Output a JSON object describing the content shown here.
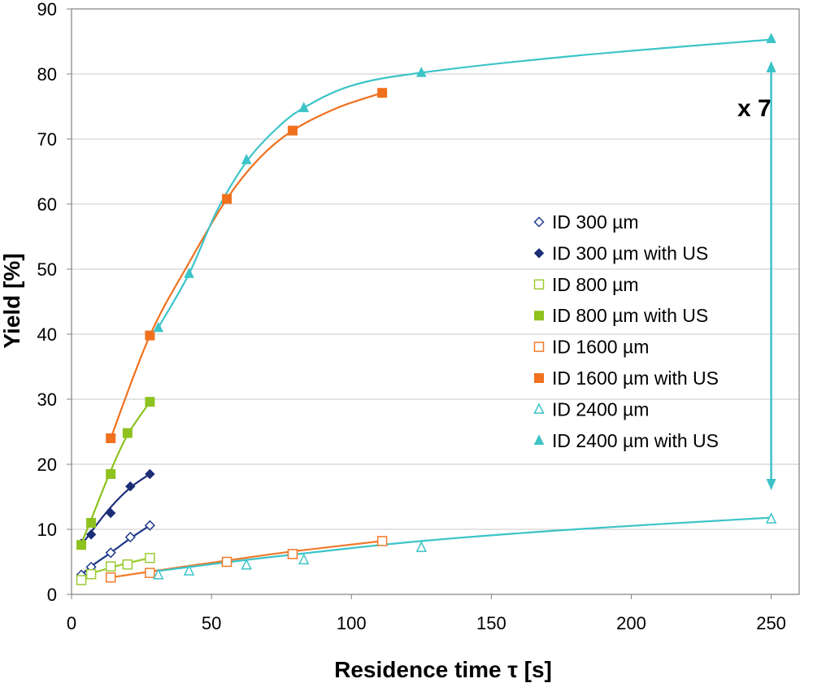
{
  "chart_data": {
    "type": "scatter",
    "title": "",
    "xlabel": "Residence time τ [s]",
    "ylabel": "Yield [%]",
    "xlim": [
      0,
      260
    ],
    "ylim": [
      0,
      90
    ],
    "xticks": [
      0,
      50,
      100,
      150,
      200,
      250
    ],
    "yticks": [
      0,
      10,
      20,
      30,
      40,
      50,
      60,
      70,
      80,
      90
    ],
    "grid": "horizontal",
    "legend_position": "right",
    "annotation": {
      "text": "x 7",
      "x": 250,
      "y_from": 16.5,
      "y_to": 81.5,
      "color": "#3CC4C8"
    },
    "series": [
      {
        "name": "ID 300 µm",
        "color": "#1F3A8A",
        "marker": "diamond",
        "filled": false,
        "points": [
          [
            3.5,
            3.0
          ],
          [
            7,
            4.2
          ],
          [
            14,
            6.4
          ],
          [
            21,
            8.8
          ],
          [
            28,
            10.6
          ]
        ],
        "fit": [
          [
            3.5,
            3.0
          ],
          [
            7,
            4.3
          ],
          [
            14,
            6.4
          ],
          [
            21,
            8.6
          ],
          [
            28,
            10.6
          ]
        ]
      },
      {
        "name": "ID 300 µm with US",
        "color": "#1C2E78",
        "marker": "diamond",
        "filled": true,
        "points": [
          [
            3.5,
            7.8
          ],
          [
            7,
            9.2
          ],
          [
            14,
            12.5
          ],
          [
            21,
            16.6
          ],
          [
            28,
            18.5
          ]
        ],
        "fit": [
          [
            3.5,
            7.5
          ],
          [
            7,
            9.6
          ],
          [
            14,
            13.4
          ],
          [
            21,
            16.4
          ],
          [
            28,
            18.5
          ]
        ]
      },
      {
        "name": "ID 800 µm",
        "color": "#9ACD32",
        "marker": "square",
        "filled": false,
        "points": [
          [
            3.5,
            2.2
          ],
          [
            7,
            3.1
          ],
          [
            14,
            4.3
          ],
          [
            20,
            4.6
          ],
          [
            28,
            5.6
          ]
        ],
        "fit": [
          [
            3.5,
            2.5
          ],
          [
            7,
            3.2
          ],
          [
            14,
            4.1
          ],
          [
            20,
            4.8
          ],
          [
            28,
            5.6
          ]
        ]
      },
      {
        "name": "ID 800 µm with US",
        "color": "#8DC21F",
        "marker": "square",
        "filled": true,
        "points": [
          [
            3.5,
            7.6
          ],
          [
            7,
            11.0
          ],
          [
            14,
            18.5
          ],
          [
            20,
            24.8
          ],
          [
            28,
            29.6
          ]
        ],
        "fit": [
          [
            3.5,
            7.8
          ],
          [
            7,
            11.5
          ],
          [
            14,
            19.0
          ],
          [
            20,
            24.5
          ],
          [
            28,
            29.6
          ]
        ]
      },
      {
        "name": "ID 1600 µm",
        "color": "#F07A2A",
        "marker": "square",
        "filled": false,
        "points": [
          [
            14,
            2.6
          ],
          [
            28,
            3.3
          ],
          [
            55.5,
            5.0
          ],
          [
            79,
            6.2
          ],
          [
            111,
            8.2
          ]
        ],
        "fit": [
          [
            14,
            2.6
          ],
          [
            28,
            3.5
          ],
          [
            55.5,
            5.2
          ],
          [
            79,
            6.6
          ],
          [
            111,
            8.2
          ]
        ]
      },
      {
        "name": "ID 1600 µm with US",
        "color": "#F0701E",
        "marker": "square",
        "filled": true,
        "points": [
          [
            14,
            24.0
          ],
          [
            28,
            39.8
          ],
          [
            55.5,
            60.8
          ],
          [
            79,
            71.3
          ],
          [
            111,
            77.1
          ]
        ],
        "fit": [
          [
            14,
            24.0
          ],
          [
            28,
            39.8
          ],
          [
            42,
            51.0
          ],
          [
            55.5,
            60.8
          ],
          [
            67,
            67.0
          ],
          [
            79,
            71.3
          ],
          [
            95,
            74.8
          ],
          [
            111,
            77.1
          ]
        ]
      },
      {
        "name": "ID 2400 µm",
        "color": "#3CC4C8",
        "marker": "triangle",
        "filled": false,
        "points": [
          [
            31,
            3.0
          ],
          [
            42,
            3.6
          ],
          [
            62.5,
            4.5
          ],
          [
            83,
            5.3
          ],
          [
            125,
            7.2
          ],
          [
            250,
            11.6
          ]
        ],
        "fit": [
          [
            31,
            3.6
          ],
          [
            42,
            4.2
          ],
          [
            62.5,
            5.3
          ],
          [
            83,
            6.3
          ],
          [
            125,
            8.2
          ],
          [
            180,
            10.0
          ],
          [
            250,
            11.8
          ]
        ]
      },
      {
        "name": "ID 2400 µm with US",
        "color": "#3CC4C8",
        "marker": "triangle",
        "filled": true,
        "points": [
          [
            31,
            41.0
          ],
          [
            42,
            49.3
          ],
          [
            62.5,
            66.8
          ],
          [
            83,
            74.8
          ],
          [
            125,
            80.2
          ],
          [
            250,
            85.4
          ]
        ],
        "fit": [
          [
            31,
            41.0
          ],
          [
            42,
            49.3
          ],
          [
            52,
            59.0
          ],
          [
            62.5,
            66.5
          ],
          [
            73,
            71.5
          ],
          [
            83,
            74.8
          ],
          [
            100,
            78.2
          ],
          [
            125,
            80.2
          ],
          [
            180,
            82.8
          ],
          [
            250,
            85.3
          ]
        ]
      }
    ]
  }
}
